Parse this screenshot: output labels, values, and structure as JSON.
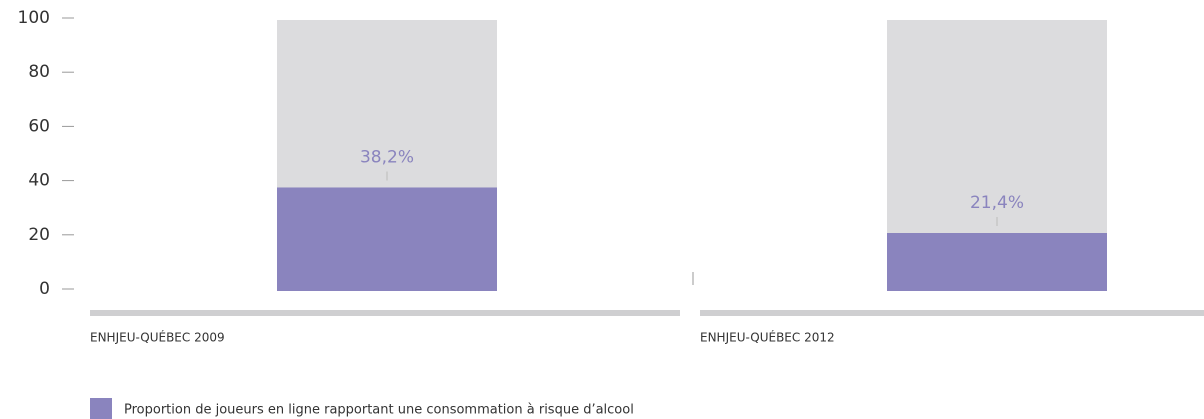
{
  "chart_data": {
    "type": "bar",
    "categories": [
      "ENHJEU-QUÉBEC 2009",
      "ENHJEU-QUÉBEC 2012"
    ],
    "series": [
      {
        "name": "Proportion de joueurs en ligne rapportant une consommation à risque d’alcool",
        "color": "#8a84be",
        "values": [
          38.2,
          21.4
        ],
        "value_labels": [
          "38,2%",
          "21,4%"
        ]
      }
    ],
    "ylim": [
      0,
      100
    ],
    "yticks": [
      0,
      20,
      40,
      60,
      80,
      100
    ],
    "track_color": "#dcdcde"
  }
}
